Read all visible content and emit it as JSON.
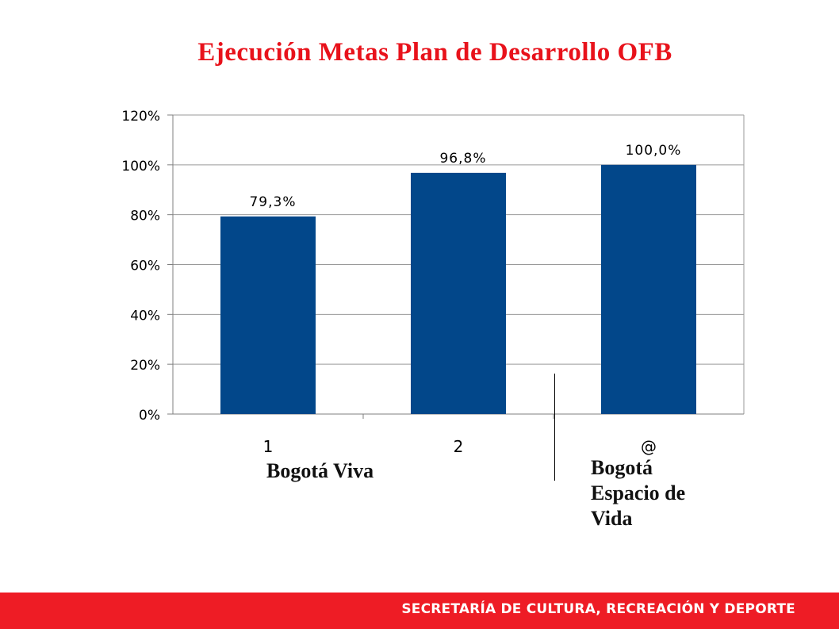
{
  "title": "Ejecución Metas Plan de Desarrollo OFB",
  "chart_data": {
    "type": "bar",
    "categories": [
      "1",
      "2",
      "@"
    ],
    "values": [
      79.3,
      96.8,
      100.0
    ],
    "data_labels": [
      "79,3%",
      "96,8%",
      "100,0%"
    ],
    "ylim": [
      0,
      120
    ],
    "yticks": [
      0,
      20,
      40,
      60,
      80,
      100,
      120
    ],
    "ytick_labels": [
      "0%",
      "20%",
      "40%",
      "60%",
      "80%",
      "100%",
      "120%"
    ],
    "grid": true,
    "bar_color": "#02478a"
  },
  "annotations": {
    "left": "Bogotá Viva",
    "right": [
      "Bogotá",
      "Espacio de",
      "Vida"
    ]
  },
  "footer": "SECRETARÍA DE CULTURA, RECREACIÓN Y DEPORTE",
  "colors": {
    "title": "#e8121b",
    "footer_bg": "#ee1c25",
    "bar": "#02478a"
  }
}
